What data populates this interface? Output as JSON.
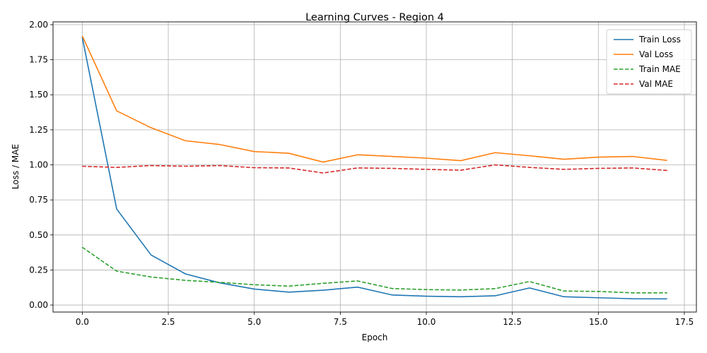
{
  "chart_data": {
    "type": "line",
    "title": "Learning Curves - Region 4",
    "xlabel": "Epoch",
    "ylabel": "Loss / MAE",
    "xlim": [
      -0.85,
      17.85
    ],
    "ylim": [
      -0.05,
      2.02
    ],
    "x_ticks": [
      0.0,
      2.5,
      5.0,
      7.5,
      10.0,
      12.5,
      15.0,
      17.5
    ],
    "x_tick_labels": [
      "0.0",
      "2.5",
      "5.0",
      "7.5",
      "10.0",
      "12.5",
      "15.0",
      "17.5"
    ],
    "y_ticks": [
      0.0,
      0.25,
      0.5,
      0.75,
      1.0,
      1.25,
      1.5,
      1.75,
      2.0
    ],
    "y_tick_labels": [
      "0.00",
      "0.25",
      "0.50",
      "0.75",
      "1.00",
      "1.25",
      "1.50",
      "1.75",
      "2.00"
    ],
    "grid": true,
    "legend_position": "top-right",
    "x": [
      0,
      1,
      2,
      3,
      4,
      5,
      6,
      7,
      8,
      9,
      10,
      11,
      12,
      13,
      14,
      15,
      16,
      17
    ],
    "series": [
      {
        "name": "Train Loss",
        "color": "#1f77b4",
        "dash": "solid",
        "values": [
          1.91,
          0.685,
          0.357,
          0.222,
          0.158,
          0.114,
          0.092,
          0.106,
          0.128,
          0.072,
          0.063,
          0.059,
          0.066,
          0.122,
          0.059,
          0.052,
          0.045,
          0.044
        ]
      },
      {
        "name": "Val Loss",
        "color": "#ff7f0e",
        "dash": "solid",
        "values": [
          1.92,
          1.385,
          1.265,
          1.172,
          1.145,
          1.095,
          1.083,
          1.02,
          1.072,
          1.06,
          1.048,
          1.03,
          1.087,
          1.065,
          1.04,
          1.055,
          1.06,
          1.032
        ]
      },
      {
        "name": "Train MAE",
        "color": "#2ca02c",
        "dash": "dashed",
        "values": [
          0.412,
          0.242,
          0.2,
          0.176,
          0.162,
          0.145,
          0.135,
          0.155,
          0.172,
          0.118,
          0.11,
          0.107,
          0.117,
          0.168,
          0.1,
          0.097,
          0.087,
          0.087
        ]
      },
      {
        "name": "Val MAE",
        "color": "#d62728",
        "dash": "dashed",
        "values": [
          0.99,
          0.982,
          0.995,
          0.99,
          0.995,
          0.98,
          0.978,
          0.942,
          0.978,
          0.975,
          0.968,
          0.962,
          1.0,
          0.982,
          0.968,
          0.975,
          0.978,
          0.96
        ]
      }
    ]
  }
}
